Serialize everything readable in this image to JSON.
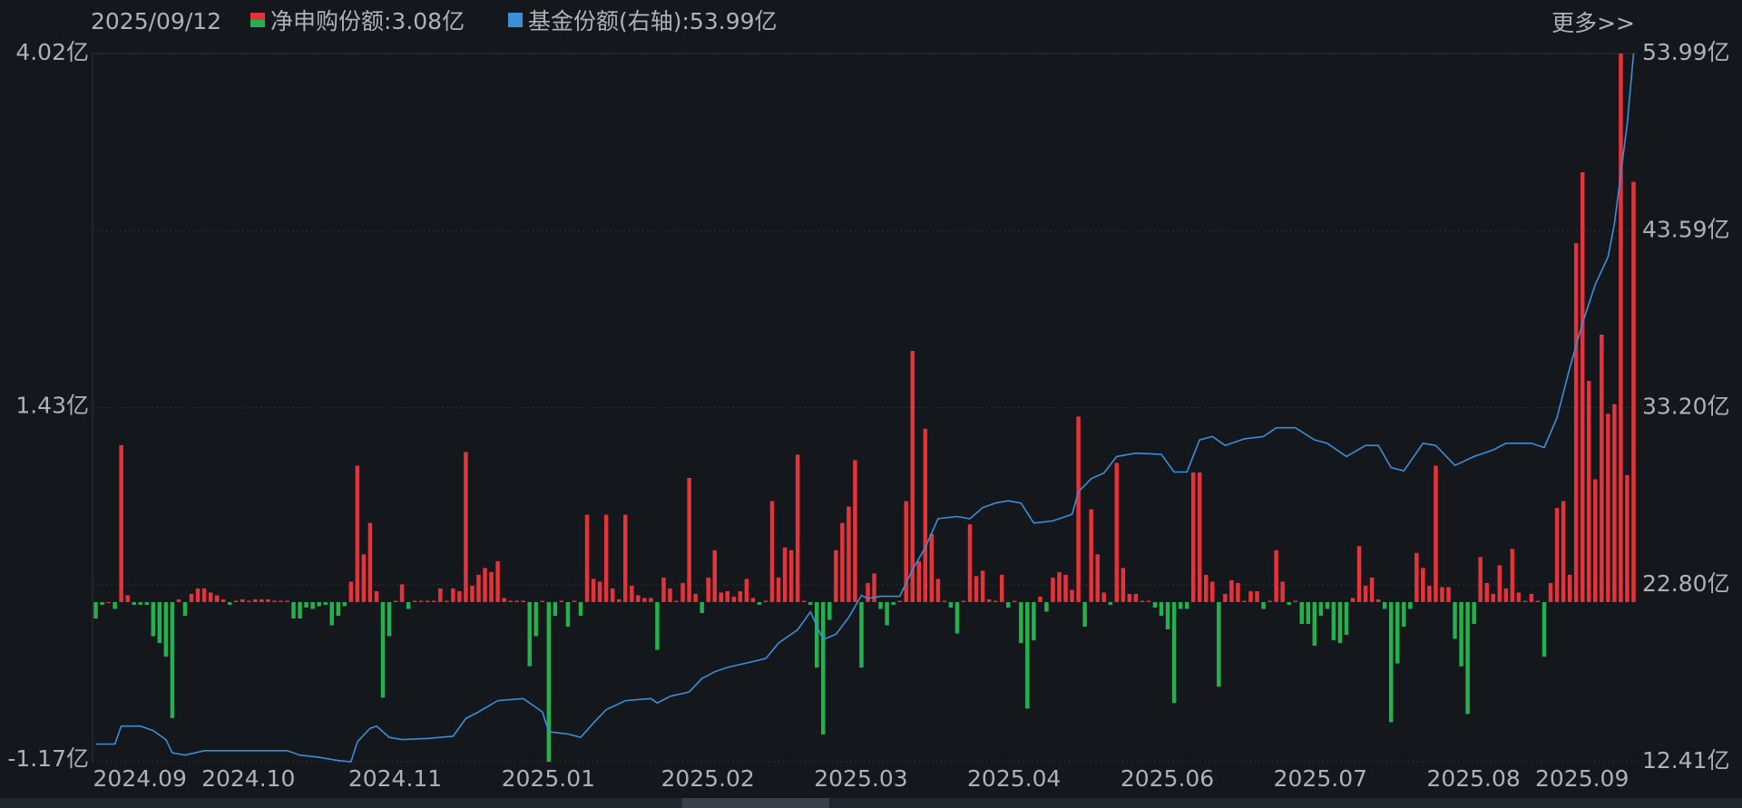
{
  "chart_data": {
    "type": "bar_line",
    "date": "2025/09/12",
    "more": "更多>>",
    "ylim": [
      -1.17,
      4.02
    ],
    "yticks": [
      {
        "value": 4.02,
        "label": "4.02亿"
      },
      {
        "value": 1.43,
        "label": "1.43亿"
      },
      {
        "value": -1.17,
        "label": "-1.17亿"
      }
    ],
    "y2lim": [
      12.41,
      53.99
    ],
    "y2ticks": [
      {
        "value": 53.99,
        "label": "53.99亿"
      },
      {
        "value": 43.59,
        "label": "43.59亿"
      },
      {
        "value": 33.2,
        "label": "33.20亿"
      },
      {
        "value": 22.8,
        "label": "22.80亿"
      },
      {
        "value": 12.41,
        "label": "12.41亿"
      }
    ],
    "xticks": [
      {
        "value": 0,
        "label": "2024.09"
      },
      {
        "value": 17,
        "label": "2024.10"
      },
      {
        "value": 40,
        "label": "2024.11"
      },
      {
        "value": 64,
        "label": "2025.01"
      },
      {
        "value": 89,
        "label": "2025.02"
      },
      {
        "value": 113,
        "label": "2025.03"
      },
      {
        "value": 137,
        "label": "2025.04"
      },
      {
        "value": 161,
        "label": "2025.06"
      },
      {
        "value": 185,
        "label": "2025.07"
      },
      {
        "value": 209,
        "label": "2025.08"
      },
      {
        "value": 226,
        "label": "2025.09"
      }
    ],
    "grid": true,
    "series": [
      {
        "name": "净申购份额:3.08亿",
        "type": "bar",
        "color": "#e63339",
        "negative_color": "#23b14d",
        "values": [
          -0.12,
          -0.02,
          0,
          -0.05,
          1.15,
          0.05,
          -0.02,
          -0.02,
          -0.02,
          -0.25,
          -0.3,
          -0.4,
          -0.85,
          0.02,
          -0.1,
          0.06,
          0.1,
          0.1,
          0.07,
          0.05,
          0.02,
          -0.02,
          0.01,
          0.02,
          0.01,
          0.02,
          0.02,
          0.02,
          0.01,
          0.01,
          0.01,
          -0.12,
          -0.12,
          -0.04,
          -0.05,
          -0.03,
          -0.02,
          -0.17,
          -0.1,
          -0.03,
          0.15,
          1.0,
          0.35,
          0.58,
          0.08,
          -0.7,
          -0.25,
          0.01,
          0.13,
          -0.05,
          0.01,
          0.01,
          0.01,
          0.01,
          0.1,
          0.01,
          0.1,
          0.08,
          1.1,
          0.12,
          0.2,
          0.25,
          0.22,
          0.3,
          0.03,
          0.01,
          0.01,
          0.01,
          -0.47,
          -0.25,
          0.01,
          -1.17,
          -0.1,
          0.01,
          -0.18,
          0.01,
          -0.1,
          0.64,
          0.17,
          0.15,
          0.64,
          0.1,
          0.02,
          0.64,
          0.12,
          0.05,
          0.03,
          0.03,
          -0.35,
          0.18,
          0.1,
          0.01,
          0.14,
          0.91,
          0.06,
          -0.08,
          0.18,
          0.38,
          0.07,
          0.08,
          0.04,
          0.08,
          0.17,
          0.03,
          -0.02,
          0.01,
          0.74,
          0.18,
          0.4,
          0.38,
          1.08,
          0.01,
          -0.02,
          -0.48,
          -0.97,
          -0.13,
          0.38,
          0.58,
          0.7,
          1.04,
          -0.48,
          0.14,
          0.21,
          -0.05,
          -0.17,
          -0.02,
          0.01,
          0.74,
          1.84,
          0.3,
          1.27,
          0.5,
          0.17,
          0.01,
          -0.04,
          -0.23,
          0.01,
          0.57,
          0.19,
          0.23,
          0.02,
          0.01,
          0.2,
          -0.04,
          0.01,
          -0.3,
          -0.78,
          -0.28,
          0.04,
          -0.07,
          0.18,
          0.22,
          0.2,
          0.09,
          1.36,
          -0.18,
          0.68,
          0.35,
          0.07,
          -0.02,
          1.02,
          0.25,
          0.06,
          0.06,
          0.01,
          0.01,
          -0.04,
          -0.1,
          -0.2,
          -0.74,
          -0.05,
          -0.05,
          0.95,
          0.95,
          0.2,
          0.15,
          -0.62,
          0.06,
          0.16,
          0.14,
          0.01,
          0.08,
          0.08,
          -0.05,
          0.01,
          0.38,
          0.15,
          -0.02,
          0.01,
          -0.16,
          -0.16,
          -0.32,
          -0.1,
          -0.05,
          -0.28,
          -0.3,
          -0.24,
          0.03,
          0.41,
          0.12,
          0.18,
          0.02,
          -0.05,
          -0.88,
          -0.45,
          -0.18,
          -0.05,
          0.36,
          0.25,
          0.12,
          1.0,
          0.11,
          0.11,
          -0.27,
          -0.47,
          -0.82,
          -0.16,
          0.33,
          0.14,
          0.06,
          0.27,
          0.1,
          0.39,
          0.07,
          0.01,
          0.06,
          0.01,
          -0.4,
          0.14,
          0.69,
          0.74,
          0.2,
          2.63,
          3.15,
          1.62,
          0.9,
          1.96,
          1.38,
          1.45,
          4.02,
          0.93,
          3.08
        ]
      },
      {
        "name": "基金份额(右轴):53.99亿",
        "type": "line",
        "axis": "y2",
        "color": "#3a8fd8",
        "x": [
          0,
          3,
          4,
          7,
          9,
          11,
          12,
          14,
          17,
          30,
          32,
          35,
          38,
          40,
          41,
          43,
          44,
          46,
          48,
          52,
          56,
          58,
          60,
          63,
          67,
          70,
          71,
          74,
          76,
          78,
          80,
          83,
          87,
          88,
          90,
          93,
          95,
          97,
          99,
          102,
          105,
          107,
          110,
          112,
          114,
          116,
          118,
          120,
          121,
          123,
          126,
          128,
          130,
          132,
          135,
          137,
          139,
          141,
          143,
          145,
          147,
          150,
          153,
          154,
          156,
          158,
          160,
          163,
          167,
          169,
          171,
          173,
          175,
          177,
          180,
          183,
          185,
          188,
          191,
          193,
          196,
          199,
          201,
          203,
          205,
          208,
          210,
          213,
          216,
          219,
          221,
          225,
          227,
          229,
          231,
          233,
          235,
          237,
          238,
          240,
          241
        ],
        "values": [
          13.45,
          13.45,
          14.5,
          14.5,
          14.24,
          13.71,
          12.93,
          12.8,
          13.06,
          13.06,
          12.8,
          12.67,
          12.48,
          12.41,
          13.58,
          14.37,
          14.5,
          13.84,
          13.71,
          13.78,
          13.91,
          14.95,
          15.34,
          16.0,
          16.12,
          15.34,
          14.17,
          14.04,
          13.84,
          14.69,
          15.47,
          16.0,
          16.12,
          15.86,
          16.25,
          16.51,
          17.3,
          17.69,
          17.95,
          18.21,
          18.47,
          19.38,
          20.16,
          21.21,
          19.58,
          19.9,
          20.88,
          22.18,
          21.99,
          22.12,
          22.12,
          23.68,
          24.99,
          26.68,
          26.81,
          26.68,
          27.33,
          27.6,
          27.73,
          27.6,
          26.42,
          26.55,
          26.94,
          28.25,
          29.03,
          29.36,
          30.33,
          30.53,
          30.46,
          29.42,
          29.42,
          31.31,
          31.5,
          30.98,
          31.37,
          31.5,
          32.02,
          32.02,
          31.31,
          31.11,
          30.33,
          30.98,
          30.98,
          29.68,
          29.49,
          31.11,
          30.98,
          29.81,
          30.33,
          30.72,
          31.11,
          31.11,
          30.85,
          32.61,
          35.54,
          38.15,
          40.43,
          42.06,
          44.01,
          49.87,
          53.99
        ]
      }
    ]
  }
}
